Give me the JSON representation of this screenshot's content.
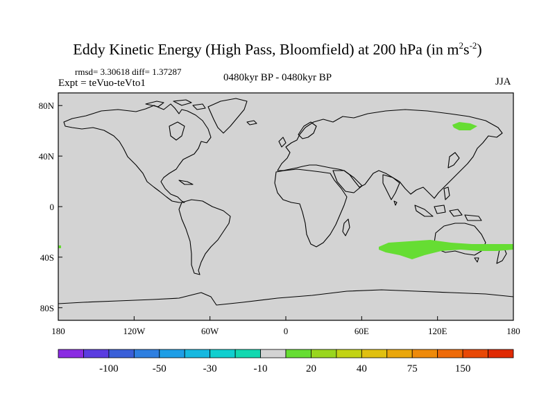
{
  "title_main": "Eddy Kinetic Energy (High Pass, Bloomfield) at 200 hPa (in m",
  "title_sup1": "2",
  "title_mid": "s",
  "title_sup2": "-2",
  "title_end": ")",
  "stats": "rmsd= 3.30618 diff= 1.37287",
  "experiment": "Expt = teVuo-teVto1",
  "period": "0480kyr BP - 0480kyr BP",
  "season": "JJA",
  "map": {
    "lon_range": [
      -180,
      180
    ],
    "lat_range": [
      -90,
      90
    ],
    "land_color": "#d3d3d3",
    "positive_fill_color": "#66dd33",
    "lat_ticks": [
      {
        "lat": 80,
        "label": "80N"
      },
      {
        "lat": 40,
        "label": "40N"
      },
      {
        "lat": 0,
        "label": "0"
      },
      {
        "lat": -40,
        "label": "40S"
      },
      {
        "lat": -80,
        "label": "80S"
      }
    ],
    "lon_ticks": [
      {
        "lon": -180,
        "label": "180"
      },
      {
        "lon": -120,
        "label": "120W"
      },
      {
        "lon": -60,
        "label": "60W"
      },
      {
        "lon": 0,
        "label": "0"
      },
      {
        "lon": 60,
        "label": "60E"
      },
      {
        "lon": 120,
        "label": "120E"
      },
      {
        "lon": 180,
        "label": "180"
      }
    ]
  },
  "colorbar": {
    "colors": [
      "#8a2be2",
      "#5a3ce0",
      "#3a5fd8",
      "#2e7fe0",
      "#1e9ee6",
      "#16b8e0",
      "#10cfcf",
      "#12d8b0",
      "#d3d3d3",
      "#66dd33",
      "#99d61e",
      "#c2d314",
      "#e0c010",
      "#eaa70c",
      "#ee8a0a",
      "#ee6a08",
      "#e84806",
      "#e02a04"
    ],
    "labels": [
      "-100",
      "-50",
      "-30",
      "-10",
      "20",
      "40",
      "75",
      "150"
    ]
  }
}
